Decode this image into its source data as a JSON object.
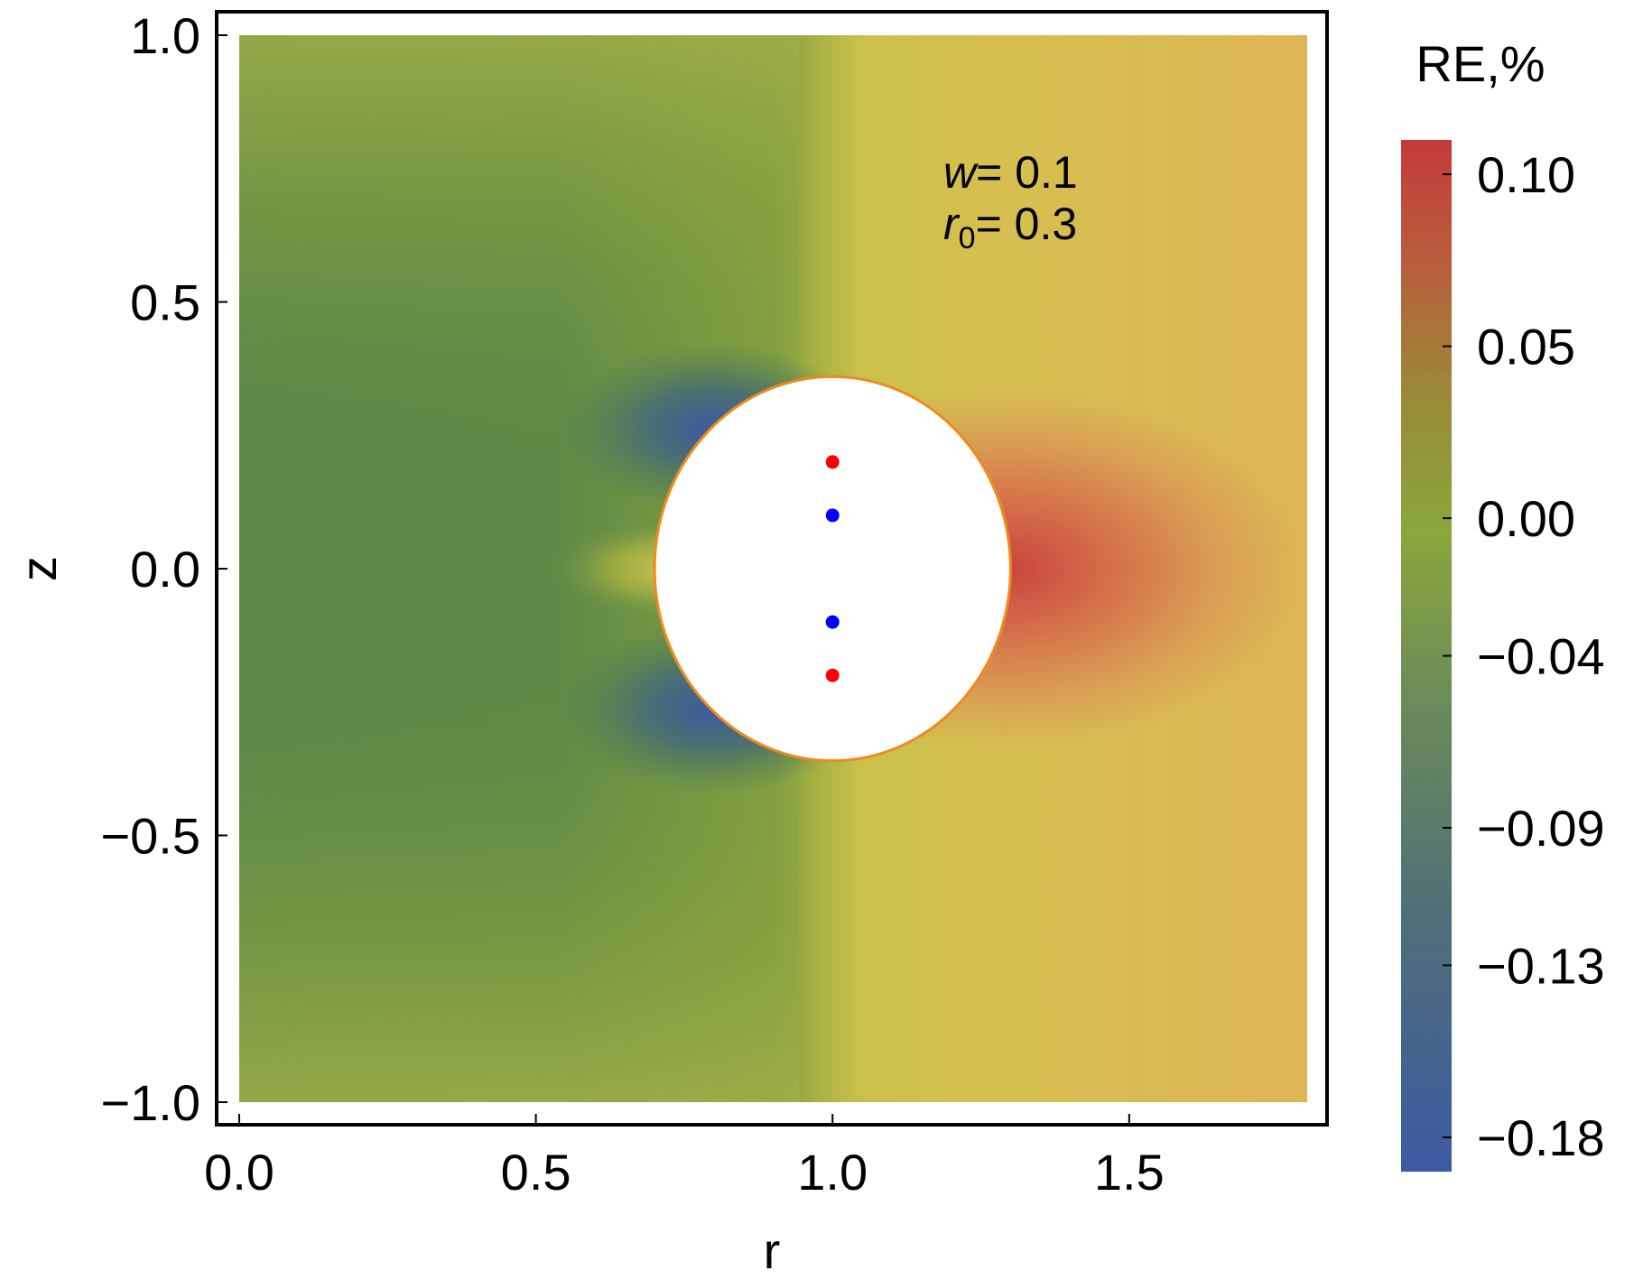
{
  "chart_data": {
    "type": "contour",
    "title": "",
    "xlabel": "r",
    "ylabel": "z",
    "xlim": [
      0.0,
      1.8
    ],
    "ylim": [
      -1.0,
      1.0
    ],
    "x_ticks": [
      "0.0",
      "0.5",
      "1.0",
      "1.5"
    ],
    "x_tick_values": [
      0.0,
      0.5,
      1.0,
      1.5
    ],
    "y_ticks": [
      "1.0",
      "0.5",
      "0.0",
      "−0.5",
      "−1.0"
    ],
    "y_tick_values": [
      1.0,
      0.5,
      0.0,
      -0.5,
      -1.0
    ],
    "colorbar": {
      "title": "RE,%",
      "tick_labels": [
        "0.10",
        "0.05",
        "0.00",
        "−0.04",
        "−0.09",
        "−0.13",
        "−0.18"
      ],
      "tick_values": [
        0.1,
        0.05,
        0.0,
        -0.04,
        -0.09,
        -0.13,
        -0.18
      ],
      "range": [
        -0.19,
        0.11
      ],
      "colors": [
        "#3d5a9e",
        "#4f7a6e",
        "#5a8b48",
        "#8aa33c",
        "#cfc24a",
        "#d9a54e",
        "#c23a3a"
      ]
    },
    "annotation": {
      "w_label": "w",
      "w_value": "= 0.1",
      "r0_label": "r",
      "r0_sub": "0",
      "r0_value": "= 0.3"
    },
    "exclusion_region": {
      "shape": "ellipse",
      "center": [
        1.0,
        0.0
      ],
      "radius_r": 0.3,
      "radius_z": 0.36,
      "color": "#f08a1c"
    },
    "points": [
      {
        "r": 1.0,
        "z": 0.2,
        "color": "#ff0000"
      },
      {
        "r": 1.0,
        "z": 0.1,
        "color": "#0000ff"
      },
      {
        "r": 1.0,
        "z": -0.1,
        "color": "#0000ff"
      },
      {
        "r": 1.0,
        "z": -0.2,
        "color": "#ff0000"
      }
    ]
  }
}
